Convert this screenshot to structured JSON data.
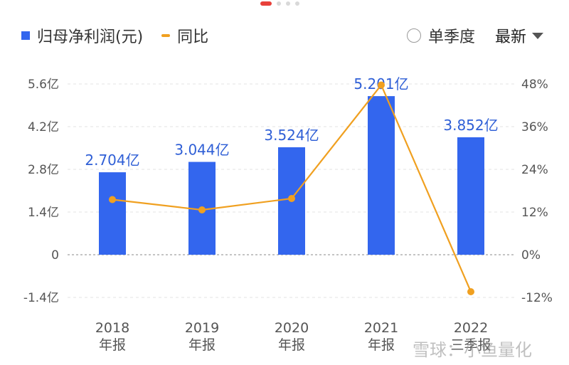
{
  "legend": {
    "bar_label": "归母净利润(元)",
    "line_label": "同比"
  },
  "controls": {
    "quarter_toggle": "单季度",
    "sort_label": "最新"
  },
  "watermark": "雪球：小鱼量化",
  "colors": {
    "bar": "#3366ee",
    "line": "#f0a020",
    "accent": "#e8403a"
  },
  "chart_data": {
    "type": "bar",
    "categories": [
      [
        "2018",
        "年报"
      ],
      [
        "2019",
        "年报"
      ],
      [
        "2020",
        "年报"
      ],
      [
        "2021",
        "年报"
      ],
      [
        "2022",
        "三季报"
      ]
    ],
    "series": [
      {
        "name": "归母净利润(元)",
        "type": "bar",
        "axis": "left",
        "values": [
          2.704,
          3.044,
          3.524,
          5.201,
          3.852
        ],
        "data_labels": [
          "2.704亿",
          "3.044亿",
          "3.524亿",
          "5.201亿",
          "3.852亿"
        ]
      },
      {
        "name": "同比",
        "type": "line",
        "axis": "right",
        "values": [
          15.5,
          12.6,
          15.8,
          47.7,
          -10.4
        ]
      }
    ],
    "left_axis": {
      "ticks": [
        "5.6亿",
        "4.2亿",
        "2.8亿",
        "1.4亿",
        "0",
        "-1.4亿"
      ],
      "range": [
        -1.4,
        5.6
      ]
    },
    "right_axis": {
      "ticks": [
        "48%",
        "36%",
        "24%",
        "12%",
        "0%",
        "-12%"
      ],
      "range": [
        -12,
        48
      ]
    },
    "grid": true,
    "legend_position": "top-left"
  }
}
